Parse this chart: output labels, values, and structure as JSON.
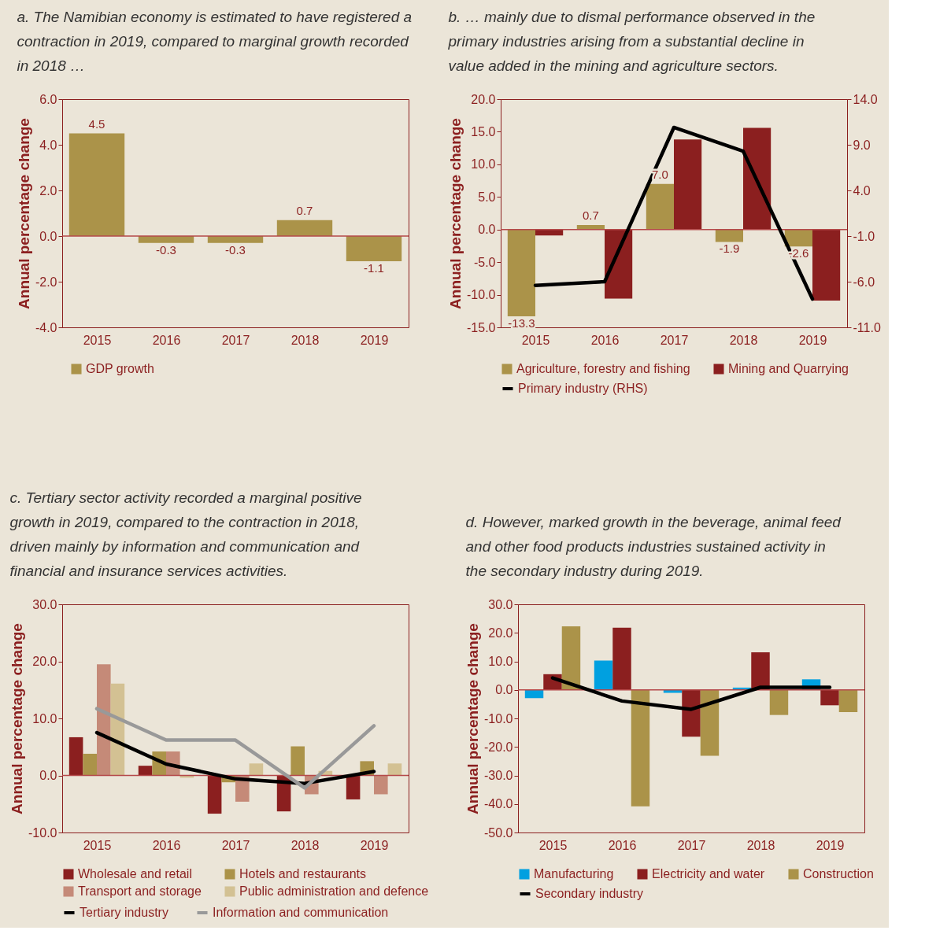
{
  "chart_data": [
    {
      "type": "bar",
      "title": "a. The Namibian economy is estimated to have registered a contraction in 2019, compared to marginal growth recorded in 2018 …",
      "ylabel": "Annual percentage change",
      "categories": [
        "2015",
        "2016",
        "2017",
        "2018",
        "2019"
      ],
      "series": [
        {
          "name": "GDP growth",
          "color": "#ab9349",
          "values": [
            4.5,
            -0.3,
            -0.3,
            0.7,
            -1.1
          ]
        }
      ],
      "data_labels": true,
      "ylim": [
        -4,
        6
      ],
      "yticks": [
        {
          "value": -4,
          "label": "-4.0"
        },
        {
          "value": -2,
          "label": "-2.0"
        },
        {
          "value": 0,
          "label": "0.0"
        },
        {
          "value": 2,
          "label": "2.0"
        },
        {
          "value": 4,
          "label": "4.0"
        },
        {
          "value": 6,
          "label": "6.0"
        }
      ],
      "ref_lines": [
        {
          "axis": "y",
          "value": 0,
          "color": "#b5494a"
        }
      ],
      "grid": false,
      "legend": "bottom"
    },
    {
      "type": "bar",
      "title": "b. … mainly due to dismal performance observed in the primary industries arising from a substantial decline in value added in the mining and agriculture sectors.",
      "ylabel": "Annual percentage change",
      "categories": [
        "2015",
        "2016",
        "2017",
        "2018",
        "2019"
      ],
      "series": [
        {
          "name": "Agriculture, forestry and fishing",
          "color": "#ab9349",
          "values": [
            -13.3,
            0.7,
            7.0,
            -1.9,
            -2.6
          ],
          "value_labels": [
            "-13.3",
            "0.7",
            "7.0",
            "-1.9",
            "-2.6"
          ]
        },
        {
          "name": "Mining and Quarrying",
          "color": "#8b1f1f",
          "values": [
            -0.9,
            -10.6,
            13.8,
            15.6,
            -10.9
          ]
        },
        {
          "name": "Primary industry (RHS)",
          "type": "line",
          "axis": "y2",
          "color": "#000000",
          "values": [
            -6.4,
            -6.0,
            10.9,
            8.3,
            -7.9
          ]
        }
      ],
      "ylim": [
        -15,
        20
      ],
      "yticks": [
        {
          "value": -15,
          "label": "-15.0"
        },
        {
          "value": -10,
          "label": "-10.0"
        },
        {
          "value": -5,
          "label": "-5.0"
        },
        {
          "value": 0,
          "label": "0.0"
        },
        {
          "value": 5,
          "label": "5.0"
        },
        {
          "value": 10,
          "label": "10.0"
        },
        {
          "value": 15,
          "label": "15.0"
        },
        {
          "value": 20,
          "label": "20.0"
        }
      ],
      "y2lim": [
        -11,
        14
      ],
      "y2ticks": [
        {
          "value": -11,
          "label": "-11.0"
        },
        {
          "value": -6,
          "label": "-6.0"
        },
        {
          "value": -1,
          "label": "-1.0"
        },
        {
          "value": 4,
          "label": "4.0"
        },
        {
          "value": 9,
          "label": "9.0"
        },
        {
          "value": 14,
          "label": "14.0"
        }
      ],
      "ref_lines": [
        {
          "axis": "y",
          "value": 0,
          "color": "#b5494a"
        }
      ],
      "grid": false,
      "legend": "bottom",
      "line_style": "solid",
      "marker": "none"
    },
    {
      "type": "bar",
      "title": "c. Tertiary sector activity recorded a marginal positive growth in 2019, compared to the contraction in 2018, driven mainly by information and communication and financial and insurance services activities.",
      "ylabel": "Annual percentage change",
      "categories": [
        "2015",
        "2016",
        "2017",
        "2018",
        "2019"
      ],
      "series": [
        {
          "name": "Wholesale and retail",
          "color": "#8b1f1f",
          "values": [
            6.7,
            1.7,
            -6.7,
            -6.3,
            -4.2
          ]
        },
        {
          "name": "Hotels and restaurants",
          "color": "#ab9349",
          "values": [
            3.8,
            4.2,
            -1.2,
            5.1,
            2.5
          ]
        },
        {
          "name": "Transport and storage",
          "color": "#c58a78",
          "values": [
            19.5,
            4.2,
            -4.6,
            -3.3,
            -3.3
          ]
        },
        {
          "name": "Public administration and defence",
          "color": "#d3c193",
          "values": [
            16.1,
            -0.4,
            2.1,
            0.8,
            2.1
          ]
        },
        {
          "name": "Tertiary industry",
          "type": "line",
          "color": "#000000",
          "values": [
            7.5,
            2.0,
            -0.6,
            -1.4,
            0.7
          ]
        },
        {
          "name": "Information and communication",
          "type": "line",
          "color": "#999999",
          "values": [
            11.7,
            6.2,
            6.2,
            -2.2,
            8.7
          ]
        }
      ],
      "ylim": [
        -10,
        30
      ],
      "yticks": [
        {
          "value": -10,
          "label": "-10.0"
        },
        {
          "value": 0,
          "label": "0.0"
        },
        {
          "value": 10,
          "label": "10.0"
        },
        {
          "value": 20,
          "label": "20.0"
        },
        {
          "value": 30,
          "label": "30.0"
        }
      ],
      "ref_lines": [
        {
          "axis": "y",
          "value": 0,
          "color": "#b5494a"
        }
      ],
      "grid": false,
      "legend": "bottom",
      "line_style": "solid",
      "marker": "none"
    },
    {
      "type": "bar",
      "title": "d. However, marked growth in the beverage, animal feed and other food products industries sustained activity in the secondary industry during 2019.",
      "ylabel": "Annual percentage change",
      "categories": [
        "2015",
        "2016",
        "2017",
        "2018",
        "2019"
      ],
      "series": [
        {
          "name": "Manufacturing",
          "color": "#00a0e0",
          "values": [
            -2.9,
            10.3,
            -1.0,
            0.8,
            3.7
          ]
        },
        {
          "name": "Electricity and water",
          "color": "#8b1f1f",
          "values": [
            5.5,
            21.8,
            -16.4,
            13.2,
            -5.4
          ]
        },
        {
          "name": "Construction",
          "color": "#ab9349",
          "values": [
            22.3,
            -40.8,
            -23.1,
            -8.8,
            -7.8
          ]
        },
        {
          "name": "Secondary industry",
          "type": "line",
          "color": "#000000",
          "values": [
            4.2,
            -3.9,
            -6.8,
            0.9,
            0.9
          ]
        }
      ],
      "ylim": [
        -50,
        30
      ],
      "yticks": [
        {
          "value": -50,
          "label": "-50.0"
        },
        {
          "value": -40,
          "label": "-40.0"
        },
        {
          "value": -30,
          "label": "-30.0"
        },
        {
          "value": -20,
          "label": "-20.0"
        },
        {
          "value": -10,
          "label": "-10.0"
        },
        {
          "value": 0,
          "label": "0.0"
        },
        {
          "value": 10,
          "label": "10.0"
        },
        {
          "value": 20,
          "label": "20.0"
        },
        {
          "value": 30,
          "label": "30.0"
        }
      ],
      "ref_lines": [
        {
          "axis": "y",
          "value": 0,
          "color": "#b5494a"
        }
      ],
      "grid": false,
      "legend": "bottom",
      "line_style": "solid",
      "marker": "none"
    }
  ]
}
